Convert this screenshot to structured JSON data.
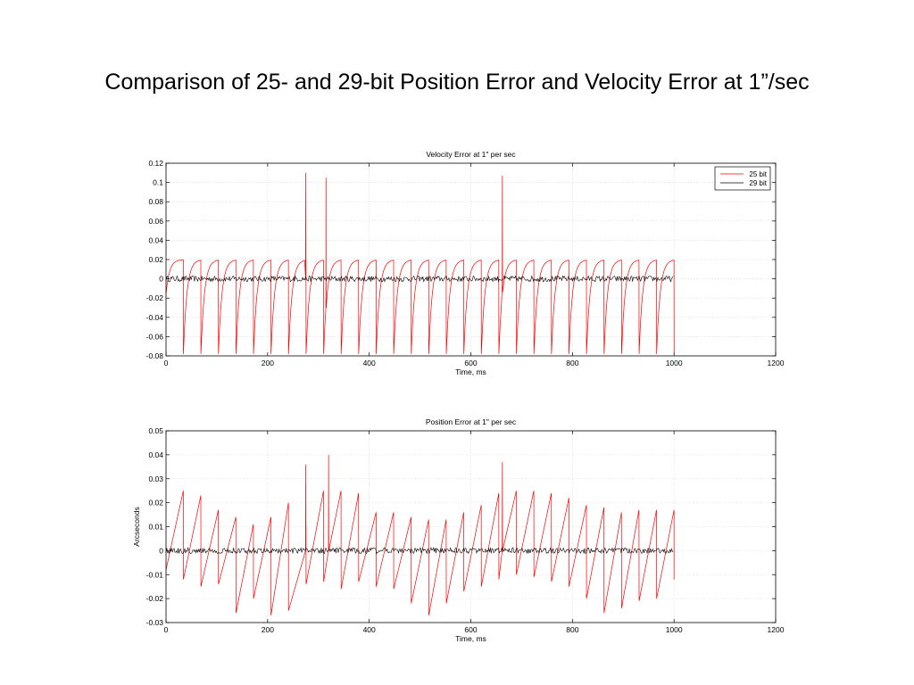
{
  "slide": {
    "title": "Comparison of 25- and 29-bit Position Error and Velocity Error at 1”/sec"
  },
  "colors": {
    "series_25": "#ff0000",
    "series_29": "#000000",
    "grid": "#d6d6d6",
    "axis": "#000000"
  },
  "chart_data": [
    {
      "id": "velocity",
      "type": "line",
      "title": "Velocity Error at 1\" per sec",
      "xlabel": "Time, ms",
      "ylabel": "",
      "xlim": [
        0,
        1200
      ],
      "ylim": [
        -0.08,
        0.12
      ],
      "xticks": [
        0,
        200,
        400,
        600,
        800,
        1000,
        1200
      ],
      "yticks": [
        -0.08,
        -0.06,
        -0.04,
        -0.02,
        0,
        0.02,
        0.04,
        0.06,
        0.08,
        0.1,
        0.12
      ],
      "xtick_labels": [
        "0",
        "200",
        "400",
        "600",
        "800",
        "1000",
        "1200"
      ],
      "ytick_labels": [
        "-0.08",
        "-0.06",
        "-0.04",
        "-0.02",
        "0",
        "0.02",
        "0.04",
        "0.06",
        "0.08",
        "0.1",
        "0.12"
      ],
      "grid": true,
      "legend": {
        "placement": "top-right",
        "entries": [
          "25 bit",
          "29 bit"
        ]
      },
      "series": [
        {
          "name": "25 bit",
          "pattern": "sawtooth",
          "period_ms": 34.5,
          "first_jump_ms": 34,
          "x_end": 1000,
          "high": 0.02,
          "low": -0.078,
          "spikes": [
            {
              "x": 275,
              "peak": 0.11,
              "trough": 0.0
            },
            {
              "x": 315,
              "peak": 0.105,
              "trough": -0.03
            },
            {
              "x": 662,
              "peak": 0.107,
              "trough": -0.01
            }
          ]
        },
        {
          "name": "29 bit",
          "pattern": "noise",
          "x_end": 1000,
          "amplitude": 0.003
        }
      ]
    },
    {
      "id": "position",
      "type": "line",
      "title": "Position Error at 1\" per sec",
      "xlabel": "Time, ms",
      "ylabel": "Arcseconds",
      "xlim": [
        0,
        1200
      ],
      "ylim": [
        -0.03,
        0.05
      ],
      "xticks": [
        0,
        200,
        400,
        600,
        800,
        1000,
        1200
      ],
      "yticks": [
        -0.03,
        -0.02,
        -0.01,
        0,
        0.01,
        0.02,
        0.03,
        0.04,
        0.05
      ],
      "xtick_labels": [
        "0",
        "200",
        "400",
        "600",
        "800",
        "1000",
        "1200"
      ],
      "ytick_labels": [
        "-0.03",
        "-0.02",
        "-0.01",
        "0",
        "0.01",
        "0.02",
        "0.03",
        "0.04",
        "0.05"
      ],
      "grid": true,
      "series": [
        {
          "name": "25 bit",
          "pattern": "ramp",
          "period_ms": 34.5,
          "first_jump_ms": 34,
          "x_end": 1000,
          "peaks": [
            0.025,
            0.023,
            0.017,
            0.014,
            0.011,
            0.014,
            0.02,
            0.01,
            0.025,
            0.025,
            0.024,
            0.016,
            0.016,
            0.014,
            0.013,
            0.013,
            0.016,
            0.019,
            0.024,
            0.025,
            0.025,
            0.024,
            0.022,
            0.019,
            0.018,
            0.016,
            0.017,
            0.017,
            0.017
          ],
          "troughs": [
            -0.008,
            -0.012,
            -0.015,
            -0.014,
            -0.026,
            -0.02,
            -0.027,
            -0.025,
            -0.014,
            -0.013,
            -0.016,
            -0.013,
            -0.015,
            -0.016,
            -0.022,
            -0.027,
            -0.022,
            -0.017,
            -0.015,
            -0.012,
            -0.01,
            -0.011,
            -0.013,
            -0.015,
            -0.02,
            -0.026,
            -0.024,
            -0.021,
            -0.02,
            -0.012
          ],
          "spikes": [
            {
              "x": 275,
              "peak": 0.036,
              "trough": 0.0
            },
            {
              "x": 320,
              "peak": 0.04,
              "trough": 0.0
            },
            {
              "x": 662,
              "peak": 0.037,
              "trough": 0.0
            }
          ]
        },
        {
          "name": "29 bit",
          "pattern": "noise",
          "x_end": 1000,
          "amplitude": 0.0012
        }
      ]
    }
  ]
}
